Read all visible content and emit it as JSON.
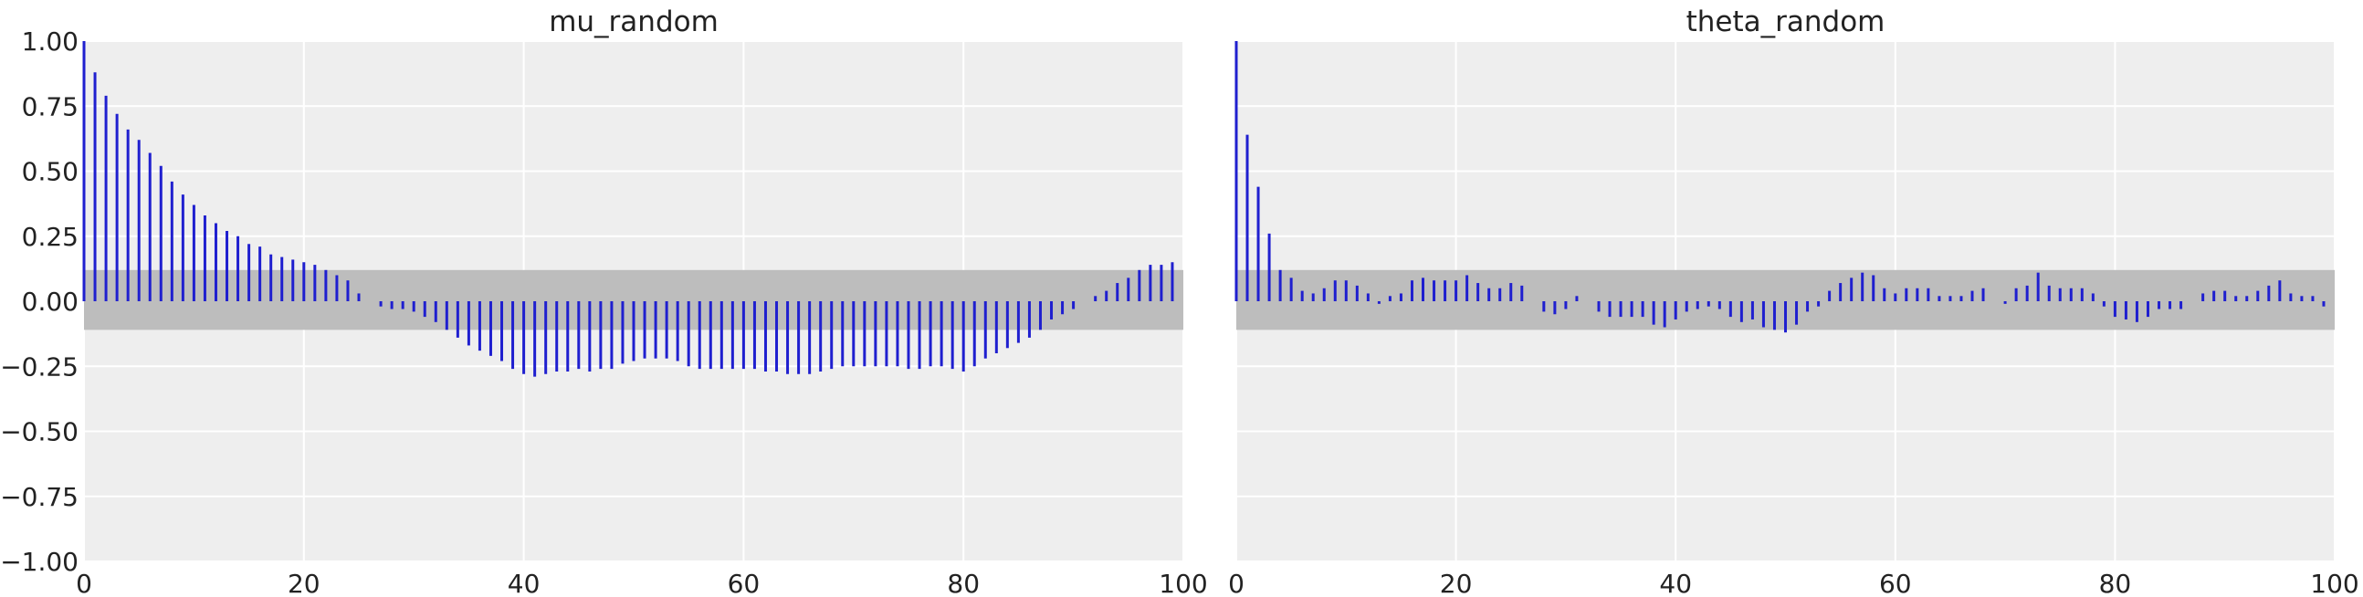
{
  "chart_data": [
    {
      "type": "bar",
      "title": "mu_random",
      "xlabel": "",
      "ylabel": "",
      "xlim": [
        0,
        100
      ],
      "ylim": [
        -1.0,
        1.0
      ],
      "x_ticks": [
        0,
        20,
        40,
        60,
        80,
        100
      ],
      "y_ticks": [
        1.0,
        0.75,
        0.5,
        0.25,
        0.0,
        -0.25,
        -0.5,
        -0.75,
        -1.0
      ],
      "x_tick_labels": [
        "0",
        "20",
        "40",
        "60",
        "80",
        "100"
      ],
      "y_tick_labels": [
        "1.00",
        "0.75",
        "0.50",
        "0.25",
        "0.00",
        "−0.25",
        "−0.50",
        "−0.75",
        "−1.00"
      ],
      "grid": true,
      "confidence_band": [
        -0.11,
        0.12
      ],
      "x": [
        0,
        1,
        2,
        3,
        4,
        5,
        6,
        7,
        8,
        9,
        10,
        11,
        12,
        13,
        14,
        15,
        16,
        17,
        18,
        19,
        20,
        21,
        22,
        23,
        24,
        25,
        26,
        27,
        28,
        29,
        30,
        31,
        32,
        33,
        34,
        35,
        36,
        37,
        38,
        39,
        40,
        41,
        42,
        43,
        44,
        45,
        46,
        47,
        48,
        49,
        50,
        51,
        52,
        53,
        54,
        55,
        56,
        57,
        58,
        59,
        60,
        61,
        62,
        63,
        64,
        65,
        66,
        67,
        68,
        69,
        70,
        71,
        72,
        73,
        74,
        75,
        76,
        77,
        78,
        79,
        80,
        81,
        82,
        83,
        84,
        85,
        86,
        87,
        88,
        89,
        90,
        91,
        92,
        93,
        94,
        95,
        96,
        97,
        98,
        99
      ],
      "values": [
        1.0,
        0.88,
        0.79,
        0.72,
        0.66,
        0.62,
        0.57,
        0.52,
        0.46,
        0.41,
        0.37,
        0.33,
        0.3,
        0.27,
        0.25,
        0.22,
        0.21,
        0.18,
        0.17,
        0.16,
        0.15,
        0.14,
        0.12,
        0.1,
        0.08,
        0.03,
        0.0,
        -0.02,
        -0.03,
        -0.03,
        -0.04,
        -0.06,
        -0.08,
        -0.11,
        -0.14,
        -0.17,
        -0.19,
        -0.21,
        -0.23,
        -0.26,
        -0.28,
        -0.29,
        -0.28,
        -0.27,
        -0.27,
        -0.26,
        -0.27,
        -0.26,
        -0.26,
        -0.24,
        -0.23,
        -0.22,
        -0.22,
        -0.22,
        -0.23,
        -0.25,
        -0.26,
        -0.26,
        -0.26,
        -0.26,
        -0.26,
        -0.26,
        -0.27,
        -0.27,
        -0.28,
        -0.28,
        -0.28,
        -0.27,
        -0.26,
        -0.25,
        -0.25,
        -0.25,
        -0.25,
        -0.25,
        -0.25,
        -0.26,
        -0.26,
        -0.25,
        -0.25,
        -0.26,
        -0.27,
        -0.25,
        -0.22,
        -0.2,
        -0.18,
        -0.16,
        -0.14,
        -0.11,
        -0.07,
        -0.05,
        -0.03,
        0.0,
        0.02,
        0.04,
        0.07,
        0.09,
        0.12,
        0.14,
        0.14,
        0.15
      ]
    },
    {
      "type": "bar",
      "title": "theta_random",
      "xlabel": "",
      "ylabel": "",
      "xlim": [
        0,
        100
      ],
      "ylim": [
        -1.0,
        1.0
      ],
      "x_ticks": [
        0,
        20,
        40,
        60,
        80,
        100
      ],
      "x_tick_labels": [
        "0",
        "20",
        "40",
        "60",
        "80",
        "100"
      ],
      "grid": true,
      "confidence_band": [
        -0.11,
        0.12
      ],
      "x": [
        0,
        1,
        2,
        3,
        4,
        5,
        6,
        7,
        8,
        9,
        10,
        11,
        12,
        13,
        14,
        15,
        16,
        17,
        18,
        19,
        20,
        21,
        22,
        23,
        24,
        25,
        26,
        27,
        28,
        29,
        30,
        31,
        32,
        33,
        34,
        35,
        36,
        37,
        38,
        39,
        40,
        41,
        42,
        43,
        44,
        45,
        46,
        47,
        48,
        49,
        50,
        51,
        52,
        53,
        54,
        55,
        56,
        57,
        58,
        59,
        60,
        61,
        62,
        63,
        64,
        65,
        66,
        67,
        68,
        69,
        70,
        71,
        72,
        73,
        74,
        75,
        76,
        77,
        78,
        79,
        80,
        81,
        82,
        83,
        84,
        85,
        86,
        87,
        88,
        89,
        90,
        91,
        92,
        93,
        94,
        95,
        96,
        97,
        98,
        99
      ],
      "values": [
        1.0,
        0.64,
        0.44,
        0.26,
        0.12,
        0.09,
        0.04,
        0.03,
        0.05,
        0.08,
        0.08,
        0.06,
        0.03,
        -0.01,
        0.02,
        0.03,
        0.08,
        0.09,
        0.08,
        0.08,
        0.08,
        0.1,
        0.07,
        0.05,
        0.05,
        0.07,
        0.06,
        0.0,
        -0.04,
        -0.05,
        -0.03,
        0.02,
        0.0,
        -0.04,
        -0.06,
        -0.06,
        -0.06,
        -0.06,
        -0.09,
        -0.1,
        -0.07,
        -0.04,
        -0.03,
        -0.02,
        -0.03,
        -0.06,
        -0.08,
        -0.07,
        -0.1,
        -0.11,
        -0.12,
        -0.09,
        -0.04,
        -0.02,
        0.04,
        0.07,
        0.09,
        0.11,
        0.1,
        0.05,
        0.03,
        0.05,
        0.05,
        0.05,
        0.02,
        0.02,
        0.02,
        0.04,
        0.05,
        0.0,
        -0.01,
        0.05,
        0.06,
        0.11,
        0.06,
        0.05,
        0.05,
        0.05,
        0.03,
        -0.02,
        -0.06,
        -0.07,
        -0.08,
        -0.06,
        -0.03,
        -0.03,
        -0.03,
        0.0,
        0.03,
        0.04,
        0.04,
        0.02,
        0.02,
        0.04,
        0.06,
        0.08,
        0.03,
        0.02,
        0.02,
        -0.02
      ]
    }
  ]
}
